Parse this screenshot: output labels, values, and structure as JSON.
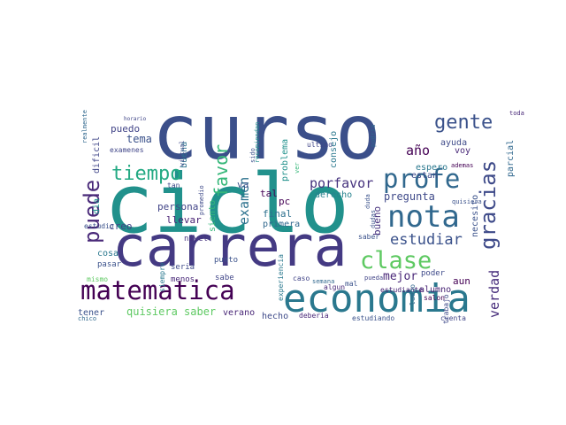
{
  "words": [
    {
      "text": "curso",
      "color": "#3b4f8a"
    },
    {
      "text": "ciclo",
      "color": "#21918c"
    },
    {
      "text": "carrera",
      "color": "#443a83"
    },
    {
      "text": "economia",
      "color": "#2a788e"
    },
    {
      "text": "matematica",
      "color": "#440154"
    },
    {
      "text": "nota",
      "color": "#31688e"
    },
    {
      "text": "profe",
      "color": "#31688e"
    },
    {
      "text": "clase",
      "color": "#5ec962"
    },
    {
      "text": "tiempo",
      "color": "#23a983"
    },
    {
      "text": "gente",
      "color": "#3b528b"
    },
    {
      "text": "puede",
      "color": "#482878"
    },
    {
      "text": "gracias",
      "color": "#3e4a89"
    },
    {
      "text": "favor",
      "color": "#35b779"
    },
    {
      "text": "estudiar",
      "color": "#3b528b"
    },
    {
      "text": "verdad",
      "color": "#472d7b"
    },
    {
      "text": "examen",
      "color": "#2c728e"
    },
    {
      "text": "porfavor",
      "color": "#46337e"
    },
    {
      "text": "año",
      "color": "#440154"
    },
    {
      "text": "quisiera saber",
      "color": "#5ec962"
    },
    {
      "text": "tema",
      "color": "#3b528b"
    },
    {
      "text": "puedo",
      "color": "#414487"
    },
    {
      "text": "pregunta",
      "color": "#3e4989"
    },
    {
      "text": "mejor",
      "color": "#482677"
    },
    {
      "text": "final",
      "color": "#2d708e"
    },
    {
      "text": "primera",
      "color": "#31688e"
    },
    {
      "text": "persona",
      "color": "#414487"
    },
    {
      "text": "llevar",
      "color": "#482173"
    },
    {
      "text": "creo",
      "color": "#414487"
    },
    {
      "text": "tener",
      "color": "#3b528b"
    },
    {
      "text": "verano",
      "color": "#482677"
    },
    {
      "text": "hecho",
      "color": "#3e4a89"
    },
    {
      "text": "bueno",
      "color": "#46327e"
    },
    {
      "text": "consejo",
      "color": "#2a788e"
    },
    {
      "text": "derecho",
      "color": "#26828e"
    },
    {
      "text": "problema",
      "color": "#21918c"
    },
    {
      "text": "siento",
      "color": "#35b779"
    },
    {
      "text": "buena",
      "color": "#2c728e"
    },
    {
      "text": "dificil",
      "color": "#404688"
    },
    {
      "text": "alumno",
      "color": "#482475"
    },
    {
      "text": "aun",
      "color": "#440154"
    },
    {
      "text": "necesito",
      "color": "#3b528b"
    },
    {
      "text": "parcial",
      "color": "#31688e"
    },
    {
      "text": "espero",
      "color": "#2a788e"
    },
    {
      "text": "ayuda",
      "color": "#3e4a89"
    },
    {
      "text": "voy",
      "color": "#482878"
    },
    {
      "text": "estan",
      "color": "#3e4989"
    },
    {
      "text": "pc",
      "color": "#440154"
    },
    {
      "text": "tal",
      "color": "#440154"
    },
    {
      "text": "va",
      "color": "#3b528b"
    },
    {
      "text": "dia",
      "color": "#21918c"
    },
    {
      "text": "cosa",
      "color": "#2a788e"
    },
    {
      "text": "pasar",
      "color": "#3b528b"
    },
    {
      "text": "seria",
      "color": "#3e4a89"
    },
    {
      "text": "menos",
      "color": "#482878"
    },
    {
      "text": "sabe",
      "color": "#404688"
    },
    {
      "text": "punto",
      "color": "#3b528b"
    },
    {
      "text": "nivel",
      "color": "#46327e"
    },
    {
      "text": "poder",
      "color": "#3e4989"
    },
    {
      "text": "estudiante",
      "color": "#482475"
    },
    {
      "text": "luego",
      "color": "#31688e"
    },
    {
      "text": "trabajo",
      "color": "#3e4a89"
    },
    {
      "text": "estudiando",
      "color": "#3b528b"
    },
    {
      "text": "cuenta",
      "color": "#404688"
    },
    {
      "text": "deberia",
      "color": "#482677"
    },
    {
      "text": "caso",
      "color": "#414487"
    },
    {
      "text": "semana",
      "color": "#31688e"
    },
    {
      "text": "mal",
      "color": "#3b528b"
    },
    {
      "text": "salon",
      "color": "#440154"
    },
    {
      "text": "experiencia",
      "color": "#2a788e"
    },
    {
      "text": "algun",
      "color": "#482878"
    },
    {
      "text": "pueda",
      "color": "#414487"
    },
    {
      "text": "tan",
      "color": "#3e4a89"
    },
    {
      "text": "saber",
      "color": "#3b528b"
    },
    {
      "text": "examenes",
      "color": "#404688"
    },
    {
      "text": "mismo",
      "color": "#5ec962"
    },
    {
      "text": "estudio",
      "color": "#3b528b"
    },
    {
      "text": "realmente",
      "color": "#31688e"
    },
    {
      "text": "virtual",
      "color": "#3e4a89"
    },
    {
      "text": "recomiendan",
      "color": "#21918c"
    },
    {
      "text": "ultimo",
      "color": "#404688"
    },
    {
      "text": "sido",
      "color": "#3b528b"
    },
    {
      "text": "podria",
      "color": "#31688e"
    },
    {
      "text": "toda",
      "color": "#482878"
    },
    {
      "text": "ademas",
      "color": "#440154"
    },
    {
      "text": "quisiera",
      "color": "#3b528b"
    },
    {
      "text": "siempre",
      "color": "#2a788e"
    },
    {
      "text": "promedio",
      "color": "#3e4a89"
    },
    {
      "text": "ver",
      "color": "#35b779"
    },
    {
      "text": "chico",
      "color": "#31688e"
    },
    {
      "text": "dudas",
      "color": "#3b528b"
    },
    {
      "text": "horario",
      "color": "#404688"
    },
    {
      "text": "duda",
      "color": "#3b528b"
    }
  ]
}
